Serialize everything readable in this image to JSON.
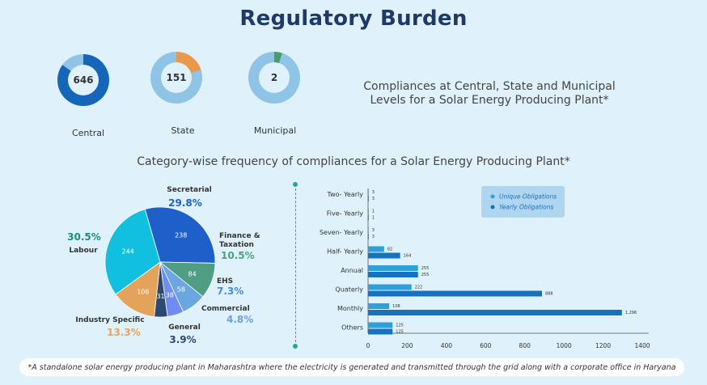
{
  "title": "Regulatory Burden",
  "donuts": [
    {
      "value": "646",
      "label": "Central",
      "fraction": 0.85,
      "color": "#1565b8",
      "track": "#90c4e6"
    },
    {
      "value": "151",
      "label": "State",
      "fraction": 0.2,
      "color": "#e8994a",
      "track": "#90c4e6"
    },
    {
      "value": "2",
      "label": "Municipal",
      "fraction": 0.05,
      "color": "#4a9c6a",
      "track": "#90c4e6"
    }
  ],
  "headline": "Compliances at Central, State and Municipal Levels for a Solar Energy Producing Plant*",
  "subtitle": "Category-wise frequency of compliances for a Solar Energy Producing Plant*",
  "footnote": "*A standalone solar energy producing plant in Maharashtra where the electricity is generated and transmitted through the grid along with a corporate office in Haryana",
  "chart_data": [
    {
      "type": "pie",
      "slices": [
        {
          "name": "Secretarial",
          "value": 238,
          "percent": "29.8%",
          "color": "#1f5fc9",
          "pctColor": "#1f5fc9"
        },
        {
          "name": "Finance & Taxation",
          "value": 84,
          "percent": "10.5%",
          "color": "#4f9e83",
          "pctColor": "#4f9e83"
        },
        {
          "name": "EHS",
          "value": 58,
          "percent": "7.3%",
          "color": "#6aa6e0",
          "pctColor": "#4b8bd6"
        },
        {
          "name": "Commercial",
          "value": 38,
          "percent": "4.8%",
          "color": "#6f8df0",
          "pctColor": "#6e9fd8"
        },
        {
          "name": "General",
          "value": 31,
          "percent": "3.9%",
          "color": "#2d4a6e",
          "pctColor": "#2d4a6e"
        },
        {
          "name": "Industry Specific",
          "value": 106,
          "percent": "13.3%",
          "color": "#e3a35a",
          "pctColor": "#e3a35a"
        },
        {
          "name": "Labour",
          "value": 244,
          "percent": "30.5%",
          "color": "#11c0de",
          "pctColor": "#17907e"
        }
      ]
    },
    {
      "type": "bar",
      "orientation": "horizontal",
      "categories": [
        "Two- Yearly",
        "Five- Yearly",
        "Seven- Yearly",
        "Half- Yearly",
        "Annual",
        "Quaterly",
        "Monthly",
        "Others"
      ],
      "series": [
        {
          "name": "Unique Obligations",
          "values": [
            3,
            1,
            3,
            82,
            255,
            222,
            108,
            125
          ],
          "labels": [
            "3",
            "1",
            "3",
            "82",
            "255",
            "222",
            "108",
            "125"
          ],
          "color": "#2e9fd9"
        },
        {
          "name": "Yearly Obligations",
          "values": [
            3,
            1,
            3,
            164,
            255,
            888,
            1296,
            125
          ],
          "labels": [
            "3",
            "1",
            "3",
            "164",
            "255",
            "888",
            "1,296",
            "125"
          ],
          "color": "#1671c0"
        }
      ],
      "xticks": [
        "0",
        "200",
        "400",
        "600",
        "800",
        "1000",
        "1200",
        "1400"
      ],
      "xlim": [
        0,
        1400
      ],
      "legend": "top-right"
    }
  ]
}
